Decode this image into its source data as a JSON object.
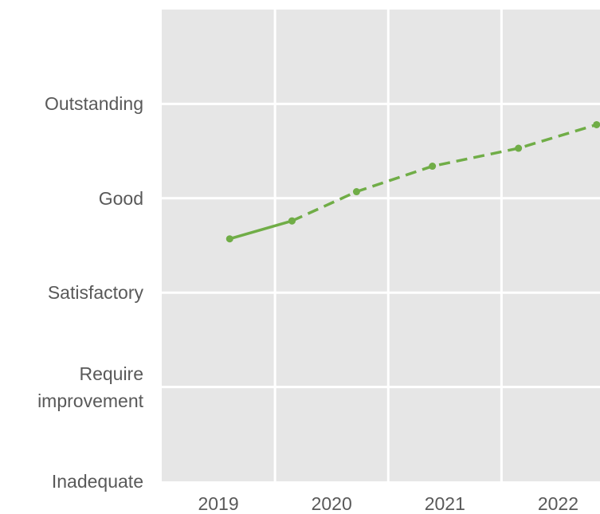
{
  "chart_data": {
    "type": "line",
    "x": [
      2019.1,
      2019.65,
      2020.22,
      2020.89,
      2021.65,
      2022.34
    ],
    "series": [
      {
        "color": "#70ad47",
        "dashed": false,
        "values": [
          2.57,
          2.76,
          null,
          null,
          null,
          null
        ]
      },
      {
        "color": "#70ad47",
        "dashed": true,
        "values": [
          null,
          2.76,
          3.07,
          3.34,
          3.53,
          3.78
        ]
      }
    ],
    "xlim": [
      2018.5,
      2022.37
    ],
    "xticks": [
      2019,
      2020,
      2021,
      2022
    ],
    "ylim": [
      0,
      5
    ],
    "yticks": [
      {
        "value": 0,
        "label": "Inadequate"
      },
      {
        "value": 1,
        "label": "Require improvement"
      },
      {
        "value": 2,
        "label": "Satisfactory"
      },
      {
        "value": 3,
        "label": "Good"
      },
      {
        "value": 4,
        "label": "Outstanding"
      }
    ],
    "grid": true
  }
}
